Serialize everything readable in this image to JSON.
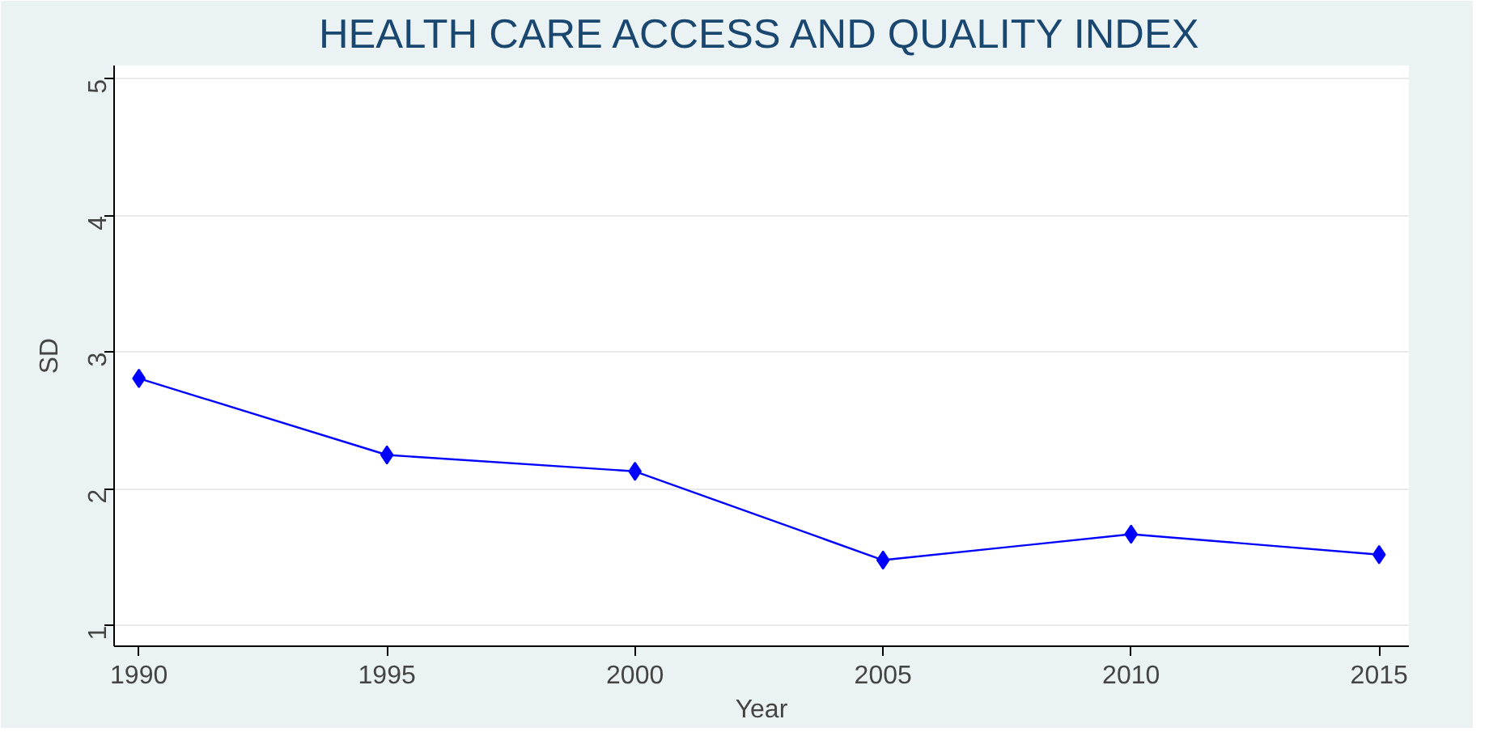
{
  "chart_data": {
    "type": "line",
    "title": "HEALTH CARE ACCESS AND QUALITY INDEX",
    "xlabel": "Year",
    "ylabel": "SD",
    "x": [
      1990,
      1995,
      2000,
      2005,
      2010,
      2015
    ],
    "series": [
      {
        "color": "#0000ff",
        "values": [
          2.81,
          2.25,
          2.13,
          1.48,
          1.67,
          1.52
        ]
      }
    ],
    "xlim": [
      1989.5,
      2015.6
    ],
    "ylim": [
      0.85,
      5.1
    ],
    "xticks": [
      1990,
      1995,
      2000,
      2005,
      2010,
      2015
    ],
    "yticks": [
      1,
      2,
      3,
      4,
      5
    ],
    "grid": "y",
    "marker": "diamond",
    "line_style": "solid"
  }
}
